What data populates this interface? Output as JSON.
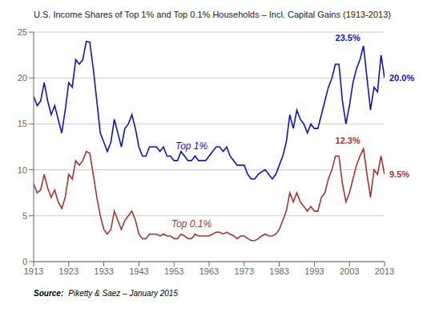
{
  "chart_data": {
    "type": "line",
    "title": "U.S. Income Shares of Top 1% and Top 0.1% Households – Incl. Capital Gains (1913-2013)",
    "source": {
      "bold": "Source:",
      "text": "Piketty & Saez – January 2015"
    },
    "x": [
      1913,
      1914,
      1915,
      1916,
      1917,
      1918,
      1919,
      1920,
      1921,
      1922,
      1923,
      1924,
      1925,
      1926,
      1927,
      1928,
      1929,
      1930,
      1931,
      1932,
      1933,
      1934,
      1935,
      1936,
      1937,
      1938,
      1939,
      1940,
      1941,
      1942,
      1943,
      1944,
      1945,
      1946,
      1947,
      1948,
      1949,
      1950,
      1951,
      1952,
      1953,
      1954,
      1955,
      1956,
      1957,
      1958,
      1959,
      1960,
      1961,
      1962,
      1963,
      1964,
      1965,
      1966,
      1967,
      1968,
      1969,
      1970,
      1971,
      1972,
      1973,
      1974,
      1975,
      1976,
      1977,
      1978,
      1979,
      1980,
      1981,
      1982,
      1983,
      1984,
      1985,
      1986,
      1987,
      1988,
      1989,
      1990,
      1991,
      1992,
      1993,
      1994,
      1995,
      1996,
      1997,
      1998,
      1999,
      2000,
      2001,
      2002,
      2003,
      2004,
      2005,
      2006,
      2007,
      2008,
      2009,
      2010,
      2011,
      2012,
      2013
    ],
    "series": [
      {
        "name": "Top 1%",
        "color": "#1111cc",
        "values": [
          18.0,
          17.0,
          17.5,
          19.5,
          17.5,
          16.0,
          17.0,
          15.5,
          14.0,
          16.5,
          19.5,
          19.0,
          22.0,
          21.5,
          22.0,
          24.0,
          23.9,
          21.0,
          17.5,
          14.0,
          13.0,
          12.0,
          13.0,
          15.5,
          14.0,
          12.5,
          14.5,
          15.0,
          16.0,
          14.5,
          12.5,
          11.5,
          11.5,
          12.5,
          12.5,
          12.5,
          12.0,
          12.5,
          11.5,
          11.5,
          11.0,
          11.0,
          12.0,
          11.5,
          11.0,
          11.0,
          11.5,
          11.0,
          11.0,
          11.0,
          11.5,
          12.0,
          12.5,
          12.5,
          12.0,
          12.5,
          11.5,
          11.0,
          10.5,
          10.5,
          10.5,
          9.5,
          9.0,
          9.0,
          9.5,
          9.8,
          10.0,
          9.5,
          9.0,
          9.5,
          10.5,
          11.5,
          13.0,
          16.0,
          14.5,
          16.5,
          15.5,
          15.0,
          14.0,
          15.0,
          14.5,
          14.5,
          16.0,
          17.5,
          19.0,
          20.0,
          21.5,
          21.5,
          17.5,
          15.0,
          17.0,
          19.5,
          21.0,
          22.0,
          23.5,
          20.0,
          16.5,
          19.0,
          18.5,
          22.5,
          20.0
        ],
        "annotations": [
          {
            "text": "23.5%",
            "x": 2007,
            "y": 23.5
          },
          {
            "text": "20.0%",
            "x": 2013,
            "y": 20.0
          }
        ]
      },
      {
        "name": "Top 0.1%",
        "color": "#aa3333",
        "values": [
          8.5,
          7.5,
          7.8,
          9.5,
          8.0,
          7.0,
          7.8,
          6.5,
          5.8,
          7.0,
          9.5,
          9.0,
          11.0,
          10.5,
          11.0,
          12.0,
          11.8,
          9.5,
          7.0,
          5.0,
          3.5,
          3.0,
          3.5,
          5.5,
          4.5,
          3.5,
          4.5,
          5.0,
          5.5,
          4.5,
          3.0,
          2.5,
          2.5,
          3.0,
          3.0,
          3.0,
          2.8,
          3.0,
          2.8,
          2.8,
          2.5,
          2.5,
          3.0,
          2.8,
          2.5,
          2.5,
          3.0,
          2.8,
          2.8,
          2.8,
          2.8,
          3.0,
          3.2,
          3.2,
          3.0,
          3.2,
          3.0,
          2.8,
          2.5,
          2.8,
          2.8,
          2.5,
          2.3,
          2.3,
          2.5,
          2.8,
          3.0,
          2.8,
          2.8,
          3.0,
          3.5,
          4.5,
          5.5,
          7.5,
          6.5,
          7.5,
          6.5,
          6.0,
          5.5,
          6.0,
          5.5,
          5.5,
          7.0,
          7.5,
          9.0,
          10.0,
          11.5,
          11.5,
          8.5,
          6.5,
          7.5,
          9.0,
          10.5,
          11.5,
          12.3,
          9.5,
          7.0,
          10.0,
          9.5,
          11.5,
          9.5
        ],
        "annotations": [
          {
            "text": "12.3%",
            "x": 2007,
            "y": 12.3
          },
          {
            "text": "9.5%",
            "x": 2013,
            "y": 9.5
          }
        ]
      }
    ],
    "xlim": [
      1913,
      2013
    ],
    "xticks": [
      1913,
      1923,
      1933,
      1943,
      1953,
      1963,
      1973,
      1983,
      1993,
      2003,
      2013
    ],
    "ylim": [
      0,
      25
    ],
    "yticks": [
      0,
      5,
      10,
      15,
      20,
      25
    ],
    "grid": true
  }
}
